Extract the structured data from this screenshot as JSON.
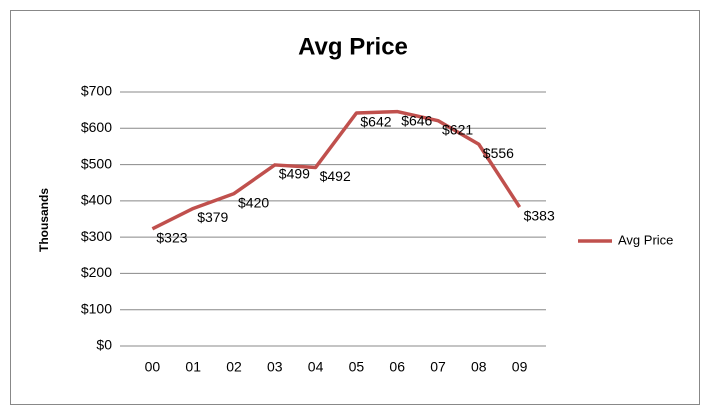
{
  "chart_data": {
    "type": "line",
    "title": "Avg Price",
    "y_label": "Thousands",
    "categories": [
      "00",
      "01",
      "02",
      "03",
      "04",
      "05",
      "06",
      "07",
      "08",
      "09"
    ],
    "series": [
      {
        "name": "Avg Price",
        "color": "#c0504d",
        "values": [
          323,
          379,
          420,
          499,
          492,
          642,
          646,
          621,
          556,
          383
        ],
        "value_labels": [
          "$323",
          "$379",
          "$420",
          "$499",
          "$492",
          "$642",
          "$646",
          "$621",
          "$556",
          "$383"
        ]
      }
    ],
    "ylim": [
      0,
      700
    ],
    "yticks": [
      {
        "value": 0,
        "label": "$0"
      },
      {
        "value": 100,
        "label": "$100"
      },
      {
        "value": 200,
        "label": "$200"
      },
      {
        "value": 300,
        "label": "$300"
      },
      {
        "value": 400,
        "label": "$400"
      },
      {
        "value": 500,
        "label": "$500"
      },
      {
        "value": 600,
        "label": "$600"
      },
      {
        "value": 700,
        "label": "$700"
      }
    ],
    "grid": true,
    "legend": "right"
  }
}
